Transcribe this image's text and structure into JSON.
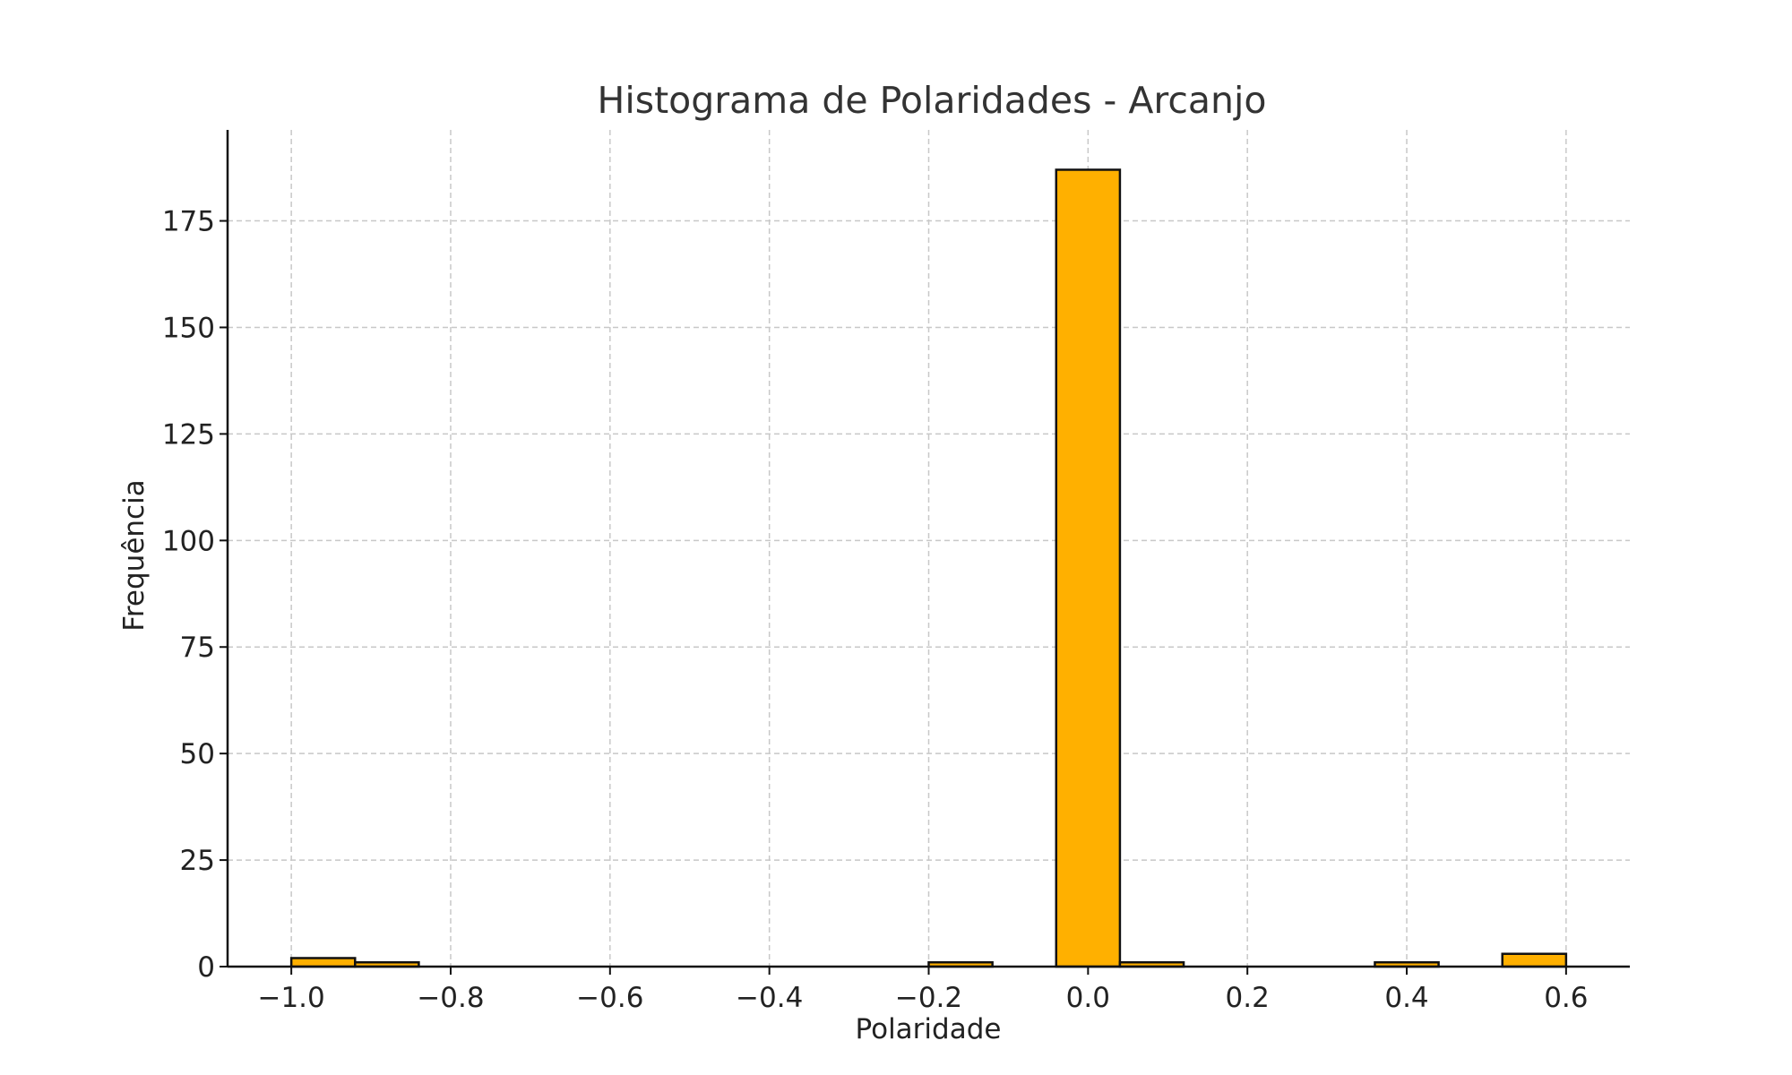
{
  "chart_data": {
    "type": "bar",
    "title": "Histograma de Polaridades - Arcanjo",
    "xlabel": "Polaridade",
    "ylabel": "Frequência",
    "bin_edges": [
      -1.0,
      -0.92,
      -0.84,
      -0.76,
      -0.68,
      -0.6,
      -0.52,
      -0.44,
      -0.36,
      -0.28,
      -0.2,
      -0.12,
      -0.04,
      0.04,
      0.12,
      0.2,
      0.28,
      0.36,
      0.44,
      0.52,
      0.6
    ],
    "values": [
      2,
      1,
      0,
      0,
      0,
      0,
      0,
      0,
      0,
      0,
      1,
      0,
      187,
      1,
      0,
      0,
      0,
      1,
      0,
      3
    ],
    "xlim": [
      -1.08,
      0.68
    ],
    "ylim": [
      0,
      196.35
    ],
    "xticks": [
      -1.0,
      -0.8,
      -0.6,
      -0.4,
      -0.2,
      0.0,
      0.2,
      0.4,
      0.6
    ],
    "xtick_labels": [
      "−1.0",
      "−0.8",
      "−0.6",
      "−0.4",
      "−0.2",
      "0.0",
      "0.2",
      "0.4",
      "0.6"
    ],
    "yticks": [
      0,
      25,
      50,
      75,
      100,
      125,
      150,
      175
    ],
    "ytick_labels": [
      "0",
      "25",
      "50",
      "75",
      "100",
      "125",
      "150",
      "175"
    ],
    "grid": true,
    "bar_color": "#ffb000",
    "edge_color": "#111111"
  }
}
